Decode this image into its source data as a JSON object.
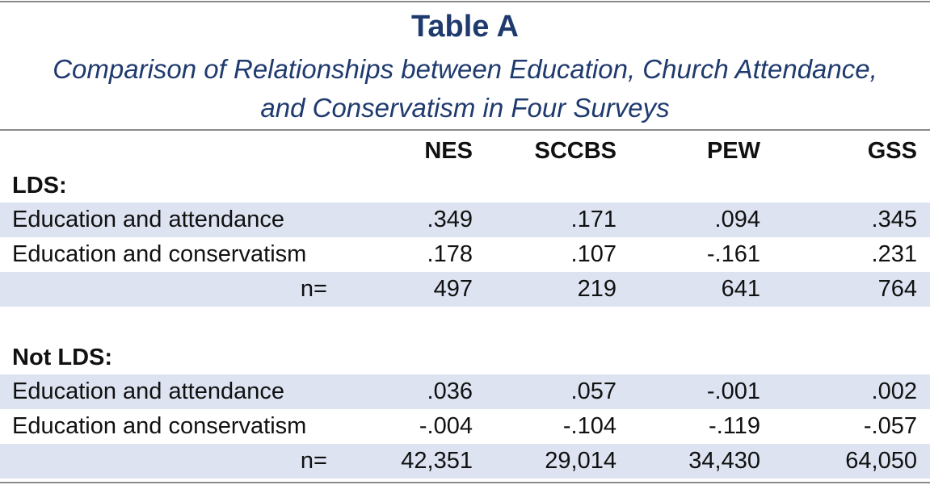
{
  "title": "Table A",
  "subtitle_line1": "Comparison of Relationships between Education, Church Attendance,",
  "subtitle_line2": "and Conservatism in Four Surveys",
  "columns": [
    "NES",
    "SCCBS",
    "PEW",
    "GSS"
  ],
  "colors": {
    "title": "#1f3a6e",
    "shading": "#dde3f1",
    "rule": "#8a8a8a"
  },
  "groups": [
    {
      "label": "LDS:",
      "rows": [
        {
          "label": "Education and attendance",
          "values": [
            ".349",
            ".171",
            ".094",
            ".345"
          ]
        },
        {
          "label": "Education and conservatism",
          "values": [
            ".178",
            ".107",
            "-.161",
            ".231"
          ]
        },
        {
          "label": "n=",
          "values": [
            "497",
            "219",
            "641",
            "764"
          ]
        }
      ]
    },
    {
      "label": "Not LDS:",
      "rows": [
        {
          "label": "Education and attendance",
          "values": [
            ".036",
            ".057",
            "-.001",
            ".002"
          ]
        },
        {
          "label": "Education and conservatism",
          "values": [
            "-.004",
            "-.104",
            "-.119",
            "-.057"
          ]
        },
        {
          "label": "n=",
          "values": [
            "42,351",
            "29,014",
            "34,430",
            "64,050"
          ]
        }
      ]
    }
  ]
}
